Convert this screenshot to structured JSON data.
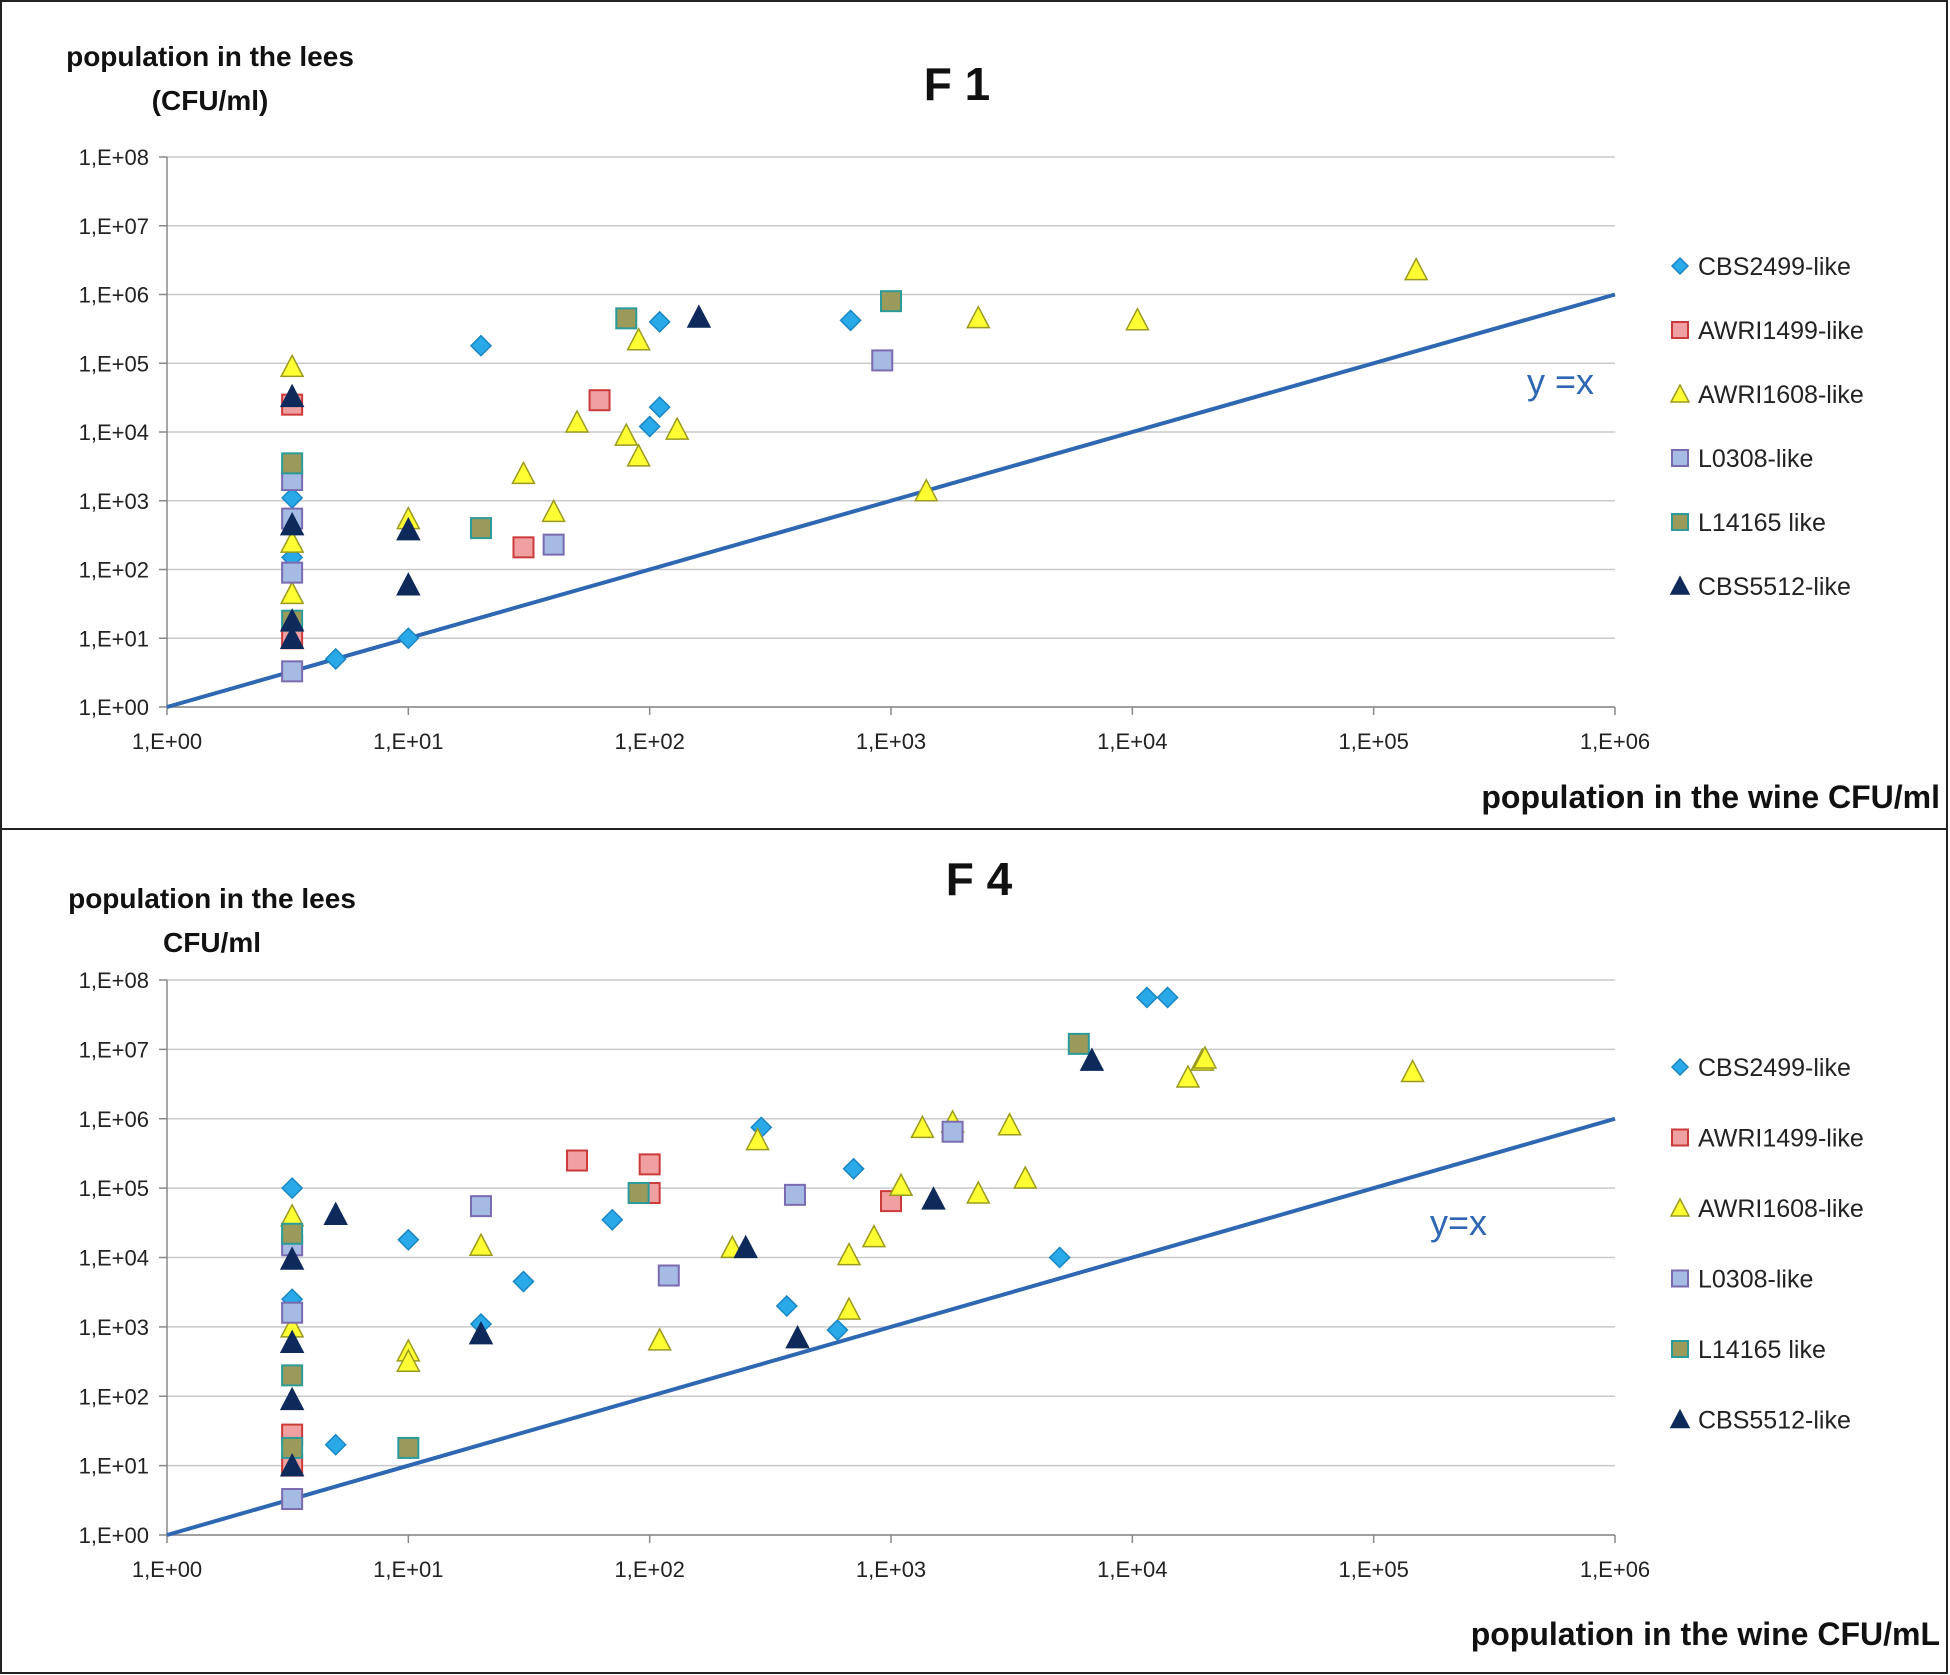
{
  "chart_data": [
    {
      "type": "scatter",
      "title": "F 1",
      "ylabel_lines": [
        "population in the lees",
        "(CFU/ml)"
      ],
      "xlabel": "population in the wine CFU/ml",
      "x_scale": "log10",
      "y_scale": "log10",
      "xlim": [
        1,
        1000000
      ],
      "ylim": [
        1,
        100000000
      ],
      "x_tick_labels": [
        "1,E+00",
        "1,E+01",
        "1,E+02",
        "1,E+03",
        "1,E+04",
        "1,E+05",
        "1,E+06"
      ],
      "y_tick_labels": [
        "1,E+00",
        "1,E+01",
        "1,E+02",
        "1,E+03",
        "1,E+04",
        "1,E+05",
        "1,E+06",
        "1,E+07",
        "1,E+08"
      ],
      "reference_line": {
        "label": "y =x",
        "equation": "y = x",
        "color": "#2e67b2"
      },
      "series": [
        {
          "name": "CBS2499-like",
          "marker": "diamond",
          "color": "#29a9e8",
          "stroke": "#1b86c4",
          "points": [
            [
              3.3,
              1100
            ],
            [
              3.3,
              150
            ],
            [
              5,
              5
            ],
            [
              10,
              10
            ],
            [
              20,
              180000
            ],
            [
              100,
              12000
            ],
            [
              110,
              23000
            ],
            [
              110,
              400000
            ],
            [
              680,
              420000
            ]
          ]
        },
        {
          "name": "AWRI1499-like",
          "marker": "square",
          "color": "#f0a0a0",
          "stroke": "#cc3b3b",
          "points": [
            [
              3.3,
              25000
            ],
            [
              3.3,
              10
            ],
            [
              30,
              210
            ],
            [
              62,
              29000
            ]
          ]
        },
        {
          "name": "AWRI1608-like",
          "marker": "triangle",
          "color": "#ffff33",
          "stroke": "#9a9a20",
          "points": [
            [
              3.3,
              90000
            ],
            [
              3.3,
              250
            ],
            [
              3.3,
              45
            ],
            [
              10,
              550
            ],
            [
              30,
              2500
            ],
            [
              40,
              700
            ],
            [
              50,
              14000
            ],
            [
              80,
              9000
            ],
            [
              90,
              4500
            ],
            [
              90,
              220000
            ],
            [
              130,
              11000
            ],
            [
              1400,
              1400
            ],
            [
              2300,
              460000
            ],
            [
              10500,
              430000
            ],
            [
              150000,
              2300000
            ]
          ]
        },
        {
          "name": "L0308-like",
          "marker": "square",
          "color": "#a6bbe3",
          "stroke": "#7a6bb0",
          "points": [
            [
              3.3,
              2000
            ],
            [
              3.3,
              550
            ],
            [
              3.3,
              90
            ],
            [
              3.3,
              3.3
            ],
            [
              40,
              230
            ],
            [
              920,
              110000
            ]
          ]
        },
        {
          "name": "L14165 like",
          "marker": "square",
          "color": "#9c9a5a",
          "stroke": "#2d9a9a",
          "points": [
            [
              3.3,
              3500
            ],
            [
              3.3,
              18
            ],
            [
              20,
              400
            ],
            [
              80,
              450000
            ],
            [
              1000,
              800000
            ]
          ]
        },
        {
          "name": "CBS5512-like",
          "marker": "triangle",
          "color": "#0d2a5a",
          "stroke": "#0d2a5a",
          "points": [
            [
              3.3,
              33000
            ],
            [
              3.3,
              450
            ],
            [
              3.3,
              18
            ],
            [
              3.3,
              10
            ],
            [
              10,
              380
            ],
            [
              10,
              60
            ],
            [
              160,
              470000
            ]
          ]
        }
      ]
    },
    {
      "type": "scatter",
      "title": "F 4",
      "ylabel_lines": [
        "population in the lees",
        "CFU/ml"
      ],
      "xlabel": "population in the wine CFU/mL",
      "x_scale": "log10",
      "y_scale": "log10",
      "xlim": [
        1,
        1000000
      ],
      "ylim": [
        1,
        100000000
      ],
      "x_tick_labels": [
        "1,E+00",
        "1,E+01",
        "1,E+02",
        "1,E+03",
        "1,E+04",
        "1,E+05",
        "1,E+06"
      ],
      "y_tick_labels": [
        "1,E+00",
        "1,E+01",
        "1,E+02",
        "1,E+03",
        "1,E+04",
        "1,E+05",
        "1,E+06",
        "1,E+07",
        "1,E+08"
      ],
      "reference_line": {
        "label": "y=x",
        "equation": "y = x",
        "color": "#2e67b2"
      },
      "series": [
        {
          "name": "CBS2499-like",
          "marker": "diamond",
          "color": "#29a9e8",
          "stroke": "#1b86c4",
          "points": [
            [
              3.3,
              100000
            ],
            [
              3.3,
              2500
            ],
            [
              5,
              20
            ],
            [
              10,
              18000
            ],
            [
              20,
              1100
            ],
            [
              30,
              4500
            ],
            [
              70,
              35000
            ],
            [
              290,
              750000
            ],
            [
              370,
              2000
            ],
            [
              600,
              900
            ],
            [
              700,
              190000
            ],
            [
              5000,
              10000
            ],
            [
              11500,
              56000000
            ],
            [
              14000,
              56000000
            ]
          ]
        },
        {
          "name": "AWRI1499-like",
          "marker": "square",
          "color": "#f0a0a0",
          "stroke": "#cc3b3b",
          "points": [
            [
              3.3,
              28
            ],
            [
              3.3,
              10
            ],
            [
              50,
              250000
            ],
            [
              100,
              220000
            ],
            [
              100,
              85000
            ],
            [
              1000,
              65000
            ]
          ]
        },
        {
          "name": "AWRI1608-like",
          "marker": "triangle",
          "color": "#ffff33",
          "stroke": "#9a9a20",
          "points": [
            [
              3.3,
              40000
            ],
            [
              3.3,
              1000
            ],
            [
              10,
              450
            ],
            [
              10,
              320
            ],
            [
              20,
              15000
            ],
            [
              110,
              650
            ],
            [
              220,
              14000
            ],
            [
              280,
              500000
            ],
            [
              670,
              11000
            ],
            [
              670,
              1800
            ],
            [
              850,
              20000
            ],
            [
              1100,
              110000
            ],
            [
              1350,
              750000
            ],
            [
              1800,
              900000
            ],
            [
              2300,
              85000
            ],
            [
              3100,
              820000
            ],
            [
              3600,
              140000
            ],
            [
              17000,
              4000000
            ],
            [
              19500,
              7000000
            ],
            [
              20000,
              7500000
            ],
            [
              145000,
              4800000
            ]
          ]
        },
        {
          "name": "L0308-like",
          "marker": "square",
          "color": "#a6bbe3",
          "stroke": "#7a6bb0",
          "points": [
            [
              3.3,
              15000
            ],
            [
              3.3,
              1600
            ],
            [
              3.3,
              3.3
            ],
            [
              20,
              55000
            ],
            [
              120,
              5500
            ],
            [
              400,
              80000
            ],
            [
              1800,
              650000
            ]
          ]
        },
        {
          "name": "L14165 like",
          "marker": "square",
          "color": "#9c9a5a",
          "stroke": "#2d9a9a",
          "points": [
            [
              3.3,
              22000
            ],
            [
              3.3,
              200
            ],
            [
              3.3,
              18
            ],
            [
              10,
              18
            ],
            [
              90,
              85000
            ],
            [
              6000,
              12000000
            ]
          ]
        },
        {
          "name": "CBS5512-like",
          "marker": "triangle",
          "color": "#0d2a5a",
          "stroke": "#0d2a5a",
          "points": [
            [
              3.3,
              9500
            ],
            [
              3.3,
              600
            ],
            [
              3.3,
              90
            ],
            [
              3.3,
              10
            ],
            [
              5,
              42000
            ],
            [
              20,
              800
            ],
            [
              250,
              14000
            ],
            [
              410,
              700
            ],
            [
              1500,
              70000
            ],
            [
              6800,
              7000000
            ]
          ]
        }
      ]
    }
  ]
}
